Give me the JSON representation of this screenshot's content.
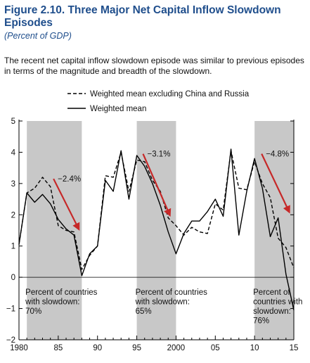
{
  "figure": {
    "title": "Figure 2.10.  Three Major Net Capital Inflow Slowdown Episodes",
    "subtitle": "(Percent of GDP)",
    "description": "The recent net capital inflow slowdown episode was similar to previous episodes in terms of the magnitude and breadth of the slowdown."
  },
  "chart_data": {
    "type": "line",
    "title": "",
    "xlabel": "",
    "ylabel": "",
    "xlim": [
      1980,
      2015
    ],
    "ylim": [
      -2,
      5
    ],
    "y_ticks": [
      -2,
      -1,
      0,
      1,
      2,
      3,
      4,
      5
    ],
    "x_ticks": [
      1980,
      1985,
      1990,
      1995,
      2000,
      2005,
      2010,
      2015
    ],
    "x_tick_labels": [
      "1980",
      "85",
      "90",
      "95",
      "2000",
      "05",
      "10",
      "15"
    ],
    "grid": false,
    "legend_position": "top-center",
    "shaded_periods": [
      {
        "start": 1981,
        "end": 1988,
        "text": [
          "Percent of countries",
          "with slowdown:",
          "70%"
        ]
      },
      {
        "start": 1995,
        "end": 2000,
        "text": [
          "Percent of countries",
          "with slowdown:",
          "65%"
        ]
      },
      {
        "start": 2010,
        "end": 2015,
        "text": [
          "Percent of",
          "countries with",
          "slowdown:",
          "76%"
        ]
      }
    ],
    "change_annotations": [
      {
        "label": "−2.4%",
        "from": [
          1984.4,
          3.15
        ],
        "to": [
          1987.5,
          1.6
        ]
      },
      {
        "label": "−3.1%",
        "from": [
          1995.8,
          3.95
        ],
        "to": [
          1999.1,
          2.05
        ]
      },
      {
        "label": "−4.8%",
        "from": [
          2010.9,
          3.95
        ],
        "to": [
          2014.3,
          2.15
        ]
      }
    ],
    "x": [
      1980,
      1981,
      1982,
      1983,
      1984,
      1985,
      1986,
      1987,
      1988,
      1989,
      1990,
      1991,
      1992,
      1993,
      1994,
      1995,
      1996,
      1997,
      1998,
      1999,
      2000,
      2001,
      2002,
      2003,
      2004,
      2005,
      2006,
      2007,
      2008,
      2009,
      2010,
      2011,
      2012,
      2013,
      2014,
      2015
    ],
    "series": [
      {
        "name": "Weighted mean excluding China and Russia",
        "style": "dashed",
        "values": [
          1.05,
          2.7,
          2.85,
          3.2,
          2.9,
          1.65,
          1.5,
          1.45,
          0.25,
          0.7,
          1.0,
          3.25,
          3.2,
          4.0,
          2.75,
          3.75,
          3.7,
          3.1,
          2.75,
          1.9,
          1.65,
          1.35,
          1.6,
          1.45,
          1.4,
          2.35,
          2.15,
          4.05,
          2.85,
          2.8,
          3.7,
          3.0,
          2.55,
          1.25,
          0.95,
          0.3
        ]
      },
      {
        "name": "Weighted mean",
        "style": "solid",
        "values": [
          1.05,
          2.7,
          2.4,
          2.65,
          2.35,
          1.85,
          1.55,
          1.35,
          0.05,
          0.75,
          1.0,
          3.1,
          2.75,
          4.05,
          2.5,
          3.9,
          3.55,
          3.0,
          2.3,
          1.45,
          0.75,
          1.4,
          1.8,
          1.8,
          2.1,
          2.5,
          1.95,
          4.1,
          1.35,
          2.75,
          3.8,
          2.85,
          1.3,
          1.9,
          0.1,
          -1.05
        ]
      }
    ],
    "colors": {
      "shade": "#c8c8c8",
      "arrow": "#c62828",
      "line": "#000000"
    }
  }
}
